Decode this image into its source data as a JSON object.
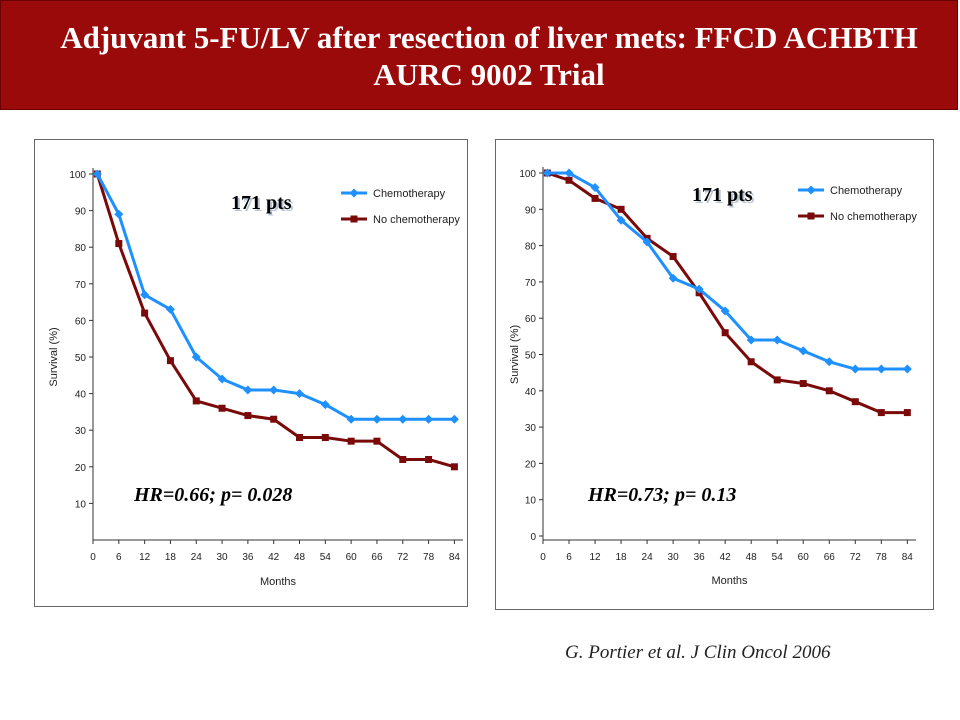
{
  "header": {
    "title": "Adjuvant 5-FU/LV after resection of liver mets: FFCD ACHBTH AURC 9002 Trial"
  },
  "citation": "G. Portier et al. J Clin Oncol 2006",
  "colors": {
    "title_bg": "#9b0a0a",
    "chemo": "#1e90ff",
    "no_chemo": "#7a0a0a"
  },
  "chart_data": [
    {
      "type": "line",
      "pts_label": "171 pts",
      "annotation": "HR=0.66;  p= 0.028",
      "xlabel": "Months",
      "ylabel": "Survival (%)",
      "x_ticks": [
        0,
        6,
        12,
        18,
        24,
        30,
        36,
        42,
        48,
        54,
        60,
        66,
        72,
        78,
        84
      ],
      "y_ticks": [
        10,
        20,
        30,
        40,
        50,
        60,
        70,
        80,
        90,
        100
      ],
      "y_tick_labels": [
        "10",
        "20",
        "30",
        "40",
        "50",
        "60",
        "70",
        "80",
        "90",
        "100"
      ],
      "x_tick_labels": [
        "0",
        "6",
        "12",
        "18",
        "24",
        "30",
        "36",
        "42",
        "48",
        "54",
        "60",
        "66",
        "72",
        "78",
        "84"
      ],
      "xlim": [
        0,
        86
      ],
      "ylim": [
        0,
        100
      ],
      "legend_position": "top-right",
      "series": [
        {
          "name": "Chemotherapy",
          "marker": "diamond",
          "x": [
            1,
            6,
            12,
            18,
            24,
            30,
            36,
            42,
            48,
            54,
            60,
            66,
            72,
            78,
            84
          ],
          "y": [
            100,
            89,
            67,
            63,
            50,
            44,
            41,
            41,
            40,
            37,
            33,
            33,
            33,
            33,
            33
          ]
        },
        {
          "name": "No chemotherapy",
          "marker": "square",
          "x": [
            1,
            6,
            12,
            18,
            24,
            30,
            36,
            42,
            48,
            54,
            60,
            66,
            72,
            78,
            84
          ],
          "y": [
            100,
            81,
            62,
            49,
            38,
            36,
            34,
            33,
            28,
            28,
            27,
            27,
            22,
            22,
            20
          ]
        }
      ]
    },
    {
      "type": "line",
      "pts_label": "171 pts",
      "annotation": "HR=0.73;  p= 0.13",
      "xlabel": "Months",
      "ylabel": "Survival (%)",
      "x_ticks": [
        0,
        6,
        12,
        18,
        24,
        30,
        36,
        42,
        48,
        54,
        60,
        66,
        72,
        78,
        84
      ],
      "y_ticks": [
        0,
        10,
        20,
        30,
        40,
        50,
        60,
        70,
        80,
        90,
        100
      ],
      "y_tick_labels": [
        "0",
        "10",
        "20",
        "30",
        "40",
        "50",
        "60",
        "70",
        "80",
        "90",
        "100"
      ],
      "x_tick_labels": [
        "0",
        "6",
        "12",
        "18",
        "24",
        "30",
        "36",
        "42",
        "48",
        "54",
        "60",
        "66",
        "72",
        "78",
        "84"
      ],
      "xlim": [
        0,
        86
      ],
      "ylim": [
        0,
        100
      ],
      "legend_position": "top-right",
      "series": [
        {
          "name": "Chemotherapy",
          "marker": "diamond",
          "x": [
            1,
            6,
            12,
            18,
            24,
            30,
            36,
            42,
            48,
            54,
            60,
            66,
            72,
            78,
            84
          ],
          "y": [
            100,
            100,
            96,
            87,
            81,
            71,
            68,
            62,
            54,
            54,
            51,
            48,
            46,
            46,
            46
          ]
        },
        {
          "name": "No chemotherapy",
          "marker": "square",
          "x": [
            1,
            6,
            12,
            18,
            24,
            30,
            36,
            42,
            48,
            54,
            60,
            66,
            72,
            78,
            84
          ],
          "y": [
            100,
            98,
            93,
            90,
            82,
            77,
            67,
            56,
            48,
            43,
            42,
            40,
            37,
            34,
            34
          ]
        }
      ]
    }
  ]
}
